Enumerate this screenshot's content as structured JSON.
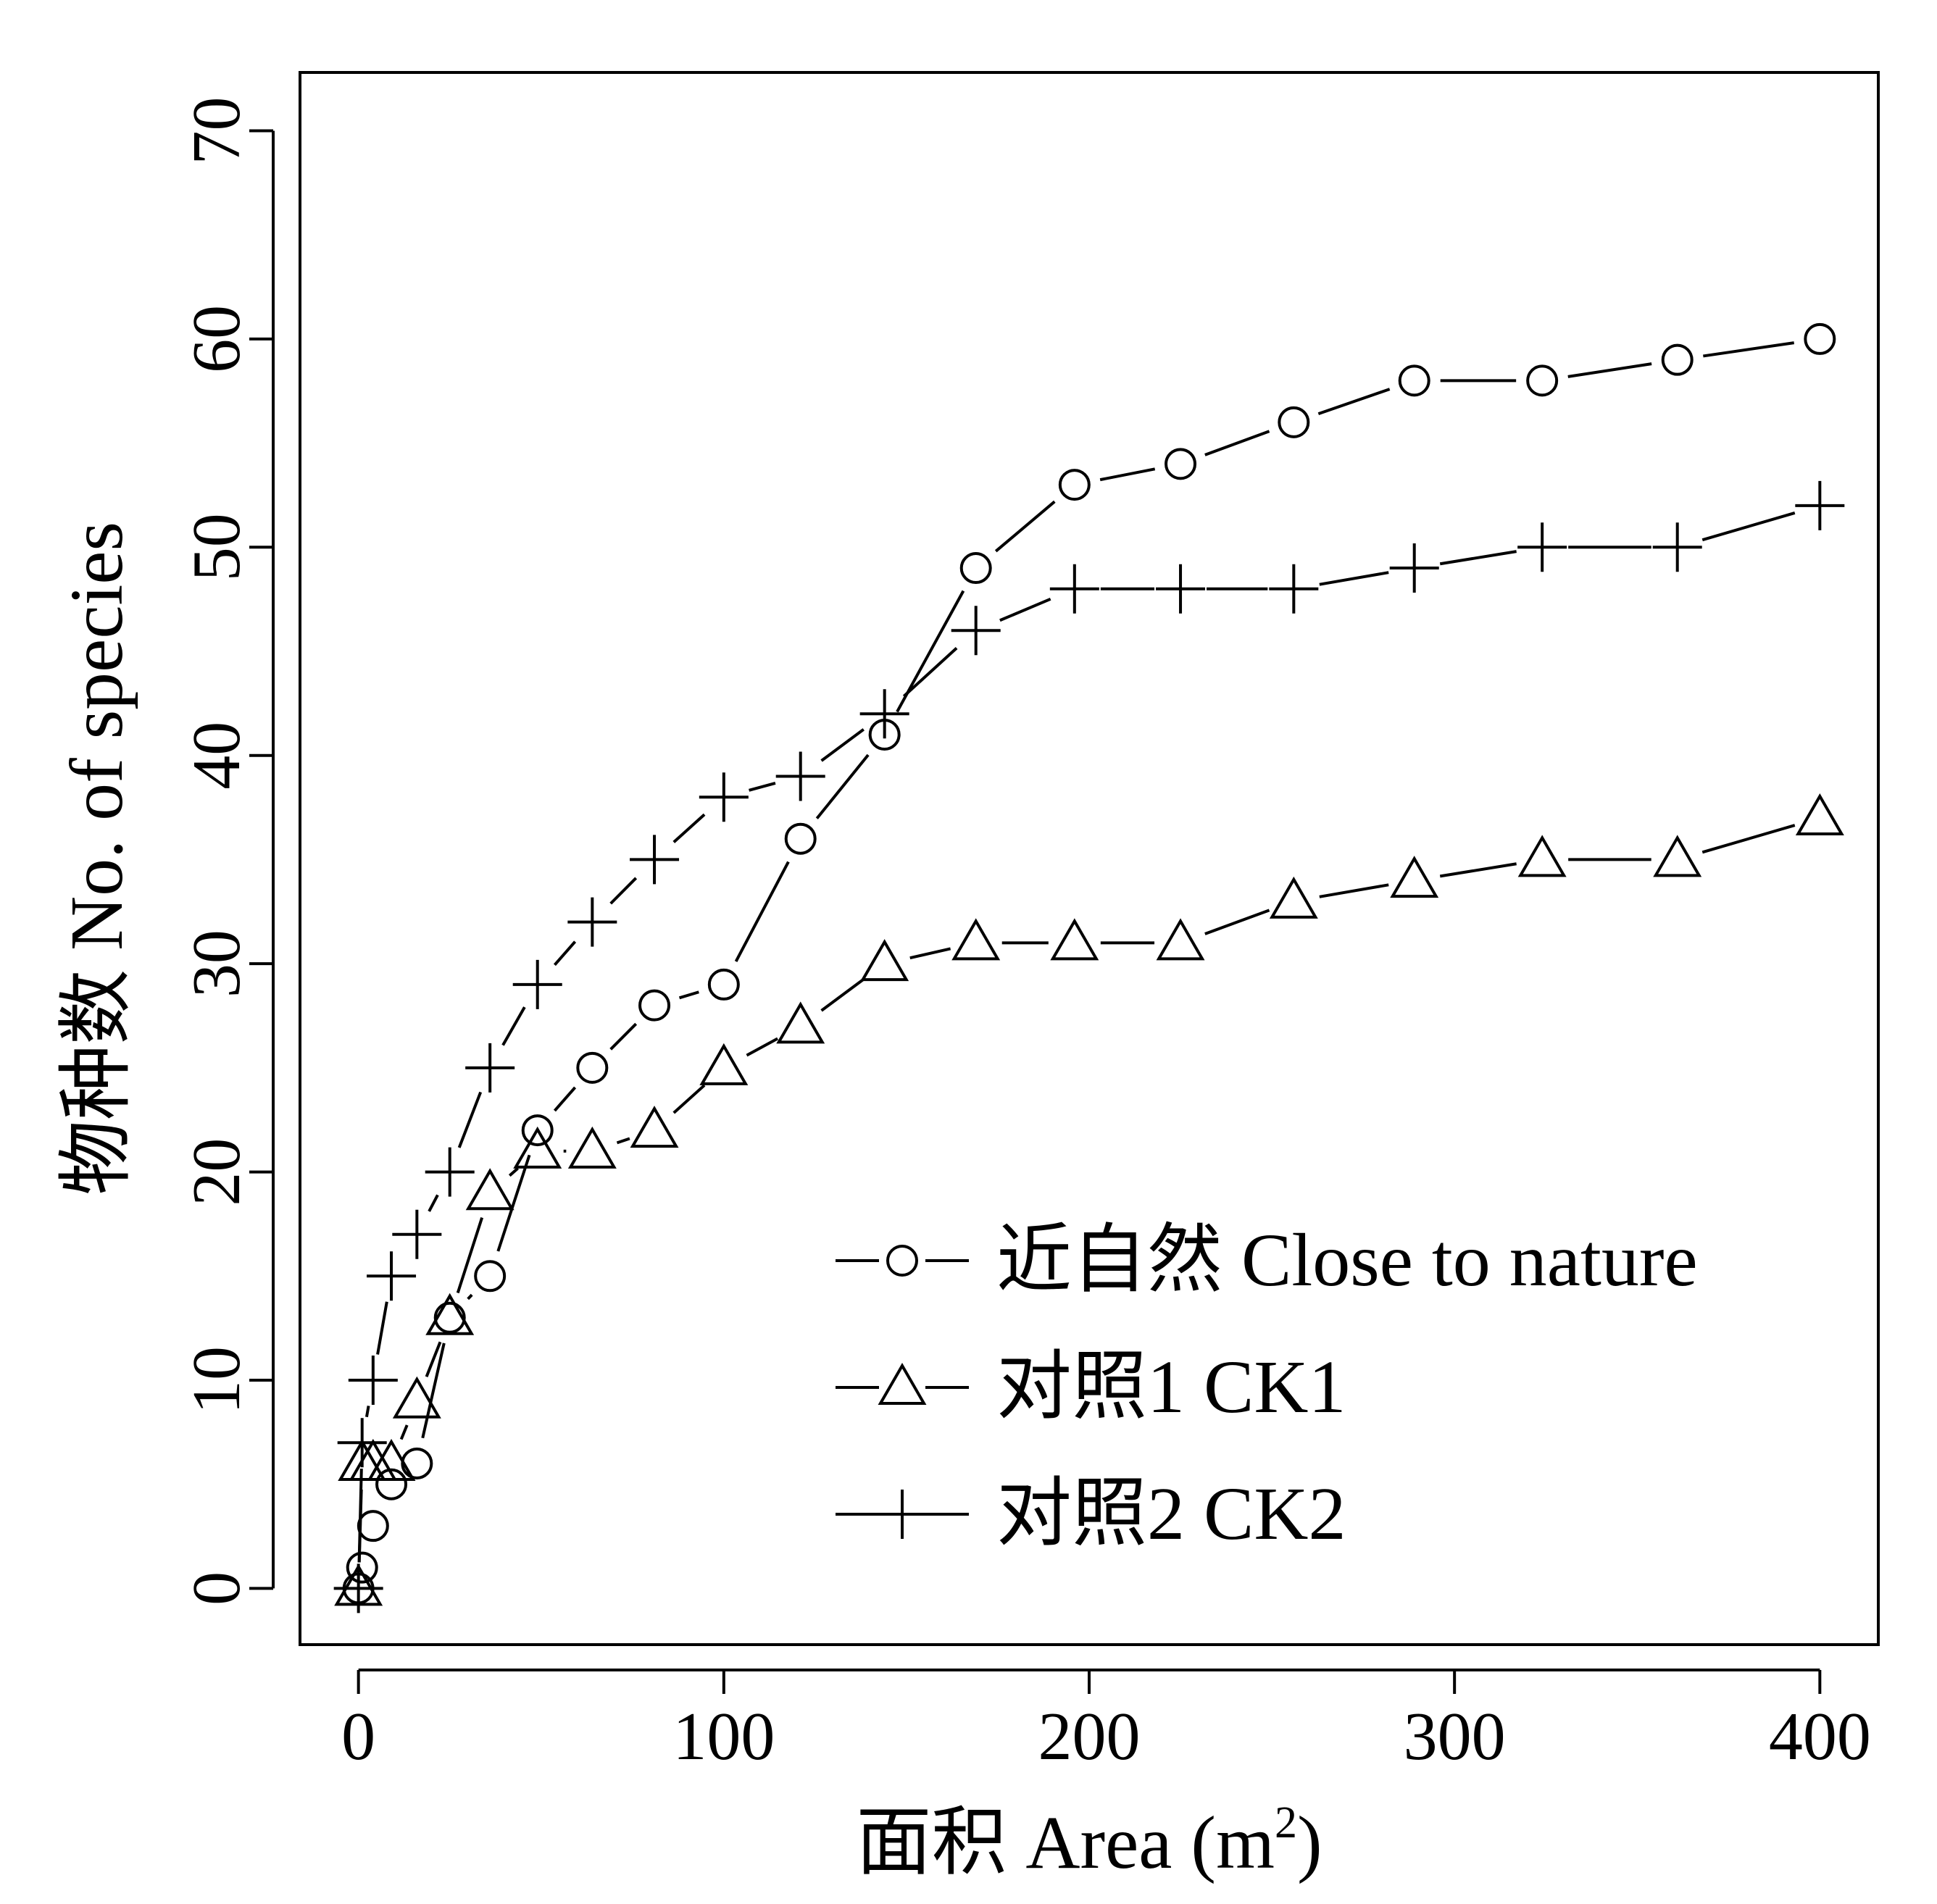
{
  "chart_data": {
    "type": "line",
    "title": "",
    "xlabel_main": "面积 Area (m",
    "xlabel_sup": "2",
    "xlabel_end": ")",
    "ylabel": "物种数  No. of species",
    "xlim": [
      -16,
      416
    ],
    "ylim": [
      -2.7,
      72.8
    ],
    "xticks": [
      0,
      100,
      200,
      300,
      400
    ],
    "yticks": [
      0,
      10,
      20,
      30,
      40,
      50,
      60,
      70
    ],
    "grid": false,
    "legend_position": "bottom-right",
    "series": [
      {
        "name": "近自然 Close to nature",
        "marker": "circle",
        "x": [
          0,
          1,
          4,
          9,
          16,
          25,
          36,
          49,
          64,
          81,
          100,
          121,
          144,
          169,
          196,
          225,
          256,
          289,
          324,
          361,
          400
        ],
        "y": [
          0,
          1,
          3,
          5,
          6,
          13,
          15,
          22,
          25,
          28,
          29,
          36,
          41,
          49,
          53,
          54,
          56,
          58,
          58,
          59,
          60
        ]
      },
      {
        "name": "对照1 CK1",
        "marker": "triangle",
        "x": [
          0,
          1,
          4,
          9,
          16,
          25,
          36,
          49,
          64,
          81,
          100,
          121,
          144,
          169,
          196,
          225,
          256,
          289,
          324,
          361,
          400
        ],
        "y": [
          0,
          6,
          6,
          6,
          9,
          13,
          19,
          21,
          21,
          22,
          25,
          27,
          30,
          31,
          31,
          31,
          33,
          34,
          35,
          35,
          37
        ]
      },
      {
        "name": "对照2 CK2",
        "marker": "plus",
        "x": [
          0,
          1,
          4,
          9,
          16,
          25,
          36,
          49,
          64,
          81,
          100,
          121,
          144,
          169,
          196,
          225,
          256,
          289,
          324,
          361,
          400
        ],
        "y": [
          0,
          7,
          10,
          15,
          17,
          20,
          25,
          29,
          32,
          35,
          38,
          39,
          42,
          46,
          48,
          48,
          48,
          49,
          50,
          50,
          52
        ]
      }
    ]
  }
}
